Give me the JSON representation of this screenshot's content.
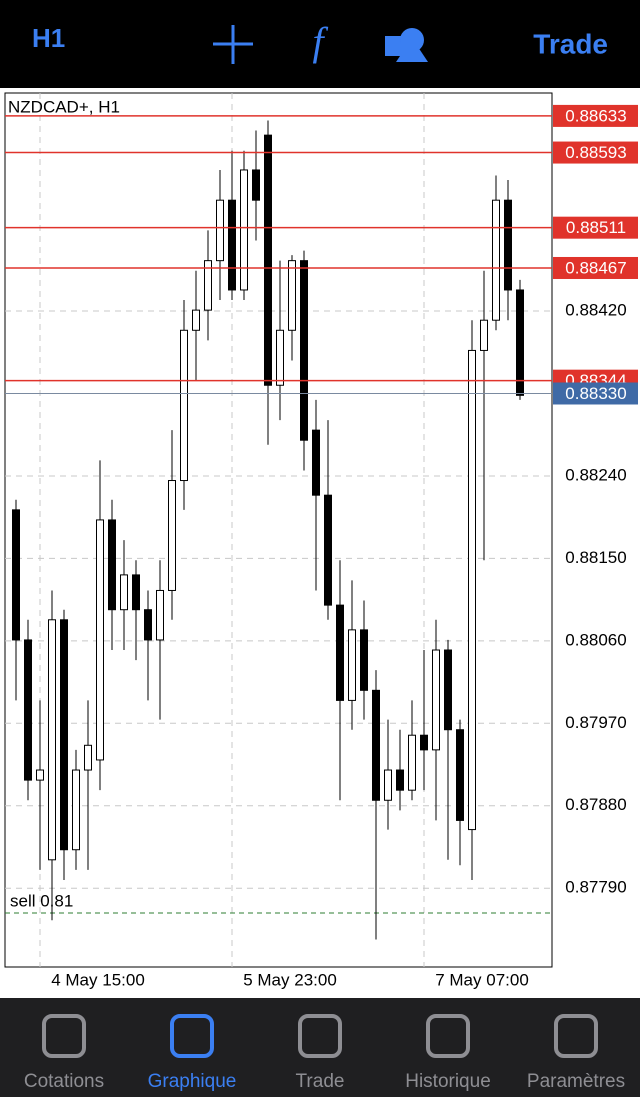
{
  "toolbar": {
    "timeframe": "H1",
    "trade": "Trade"
  },
  "chart_data": {
    "type": "candlestick",
    "title": "NZDCAD+, H1",
    "categories": [
      null,
      null,
      "4 May 15:00",
      null,
      null,
      null,
      null,
      null,
      null,
      null,
      null,
      null,
      null,
      null,
      null,
      null,
      null,
      null,
      "5 May 23:00",
      null,
      null,
      null,
      null,
      null,
      null,
      null,
      null,
      null,
      null,
      null,
      null,
      null,
      null,
      null,
      "7 May 07:00",
      null,
      null,
      null,
      null,
      null,
      null,
      null,
      null
    ],
    "open": [
      0.88203,
      0.88061,
      0.87908,
      0.87821,
      0.88083,
      0.87832,
      0.87919,
      0.8793,
      0.88192,
      0.88094,
      0.88132,
      0.88094,
      0.88061,
      0.88115,
      0.88235,
      0.88399,
      0.88421,
      0.88475,
      0.88541,
      0.88443,
      0.88574,
      0.88612,
      0.88339,
      0.88399,
      0.88475,
      0.8829,
      0.88219,
      0.88099,
      0.87995,
      0.88072,
      0.88006,
      0.87886,
      0.87919,
      0.87897,
      0.87957,
      0.87941,
      0.8805,
      0.87963,
      0.87854,
      0.88377,
      0.8841,
      0.88541,
      0.88443
    ],
    "high": [
      0.88214,
      0.88083,
      0.87995,
      0.88115,
      0.88094,
      0.87941,
      0.87995,
      0.88257,
      0.88214,
      0.8817,
      0.88148,
      0.88115,
      0.88148,
      0.8829,
      0.88432,
      0.88464,
      0.88508,
      0.88574,
      0.88595,
      0.88595,
      0.88617,
      0.88628,
      0.88475,
      0.88481,
      0.88486,
      0.88323,
      0.88301,
      0.88148,
      0.88126,
      0.88104,
      0.88028,
      0.87974,
      0.87963,
      0.87995,
      0.8805,
      0.88083,
      0.88061,
      0.87974,
      0.8841,
      0.88464,
      0.88568,
      0.88563,
      0.88454
    ],
    "low": [
      0.87995,
      0.87886,
      0.8781,
      0.87755,
      0.87799,
      0.8781,
      0.8781,
      0.87897,
      0.8805,
      0.8805,
      0.88039,
      0.87995,
      0.87974,
      0.88083,
      0.88203,
      0.88344,
      0.88388,
      0.88432,
      0.88432,
      0.88432,
      0.88497,
      0.88274,
      0.88301,
      0.88366,
      0.88246,
      0.88115,
      0.88083,
      0.87886,
      0.87963,
      0.87974,
      0.87734,
      0.87854,
      0.87875,
      0.87886,
      0.87897,
      0.87864,
      0.87821,
      0.87815,
      0.87799,
      0.88148,
      0.88399,
      0.8841,
      0.88323
    ],
    "close": [
      0.88061,
      0.87908,
      0.87919,
      0.88083,
      0.87832,
      0.87919,
      0.87946,
      0.88192,
      0.88094,
      0.88132,
      0.88094,
      0.88061,
      0.88115,
      0.88235,
      0.88399,
      0.88421,
      0.88475,
      0.88541,
      0.88443,
      0.88574,
      0.88541,
      0.88339,
      0.88399,
      0.88475,
      0.88279,
      0.88219,
      0.88099,
      0.87995,
      0.88072,
      0.88006,
      0.87886,
      0.87919,
      0.87897,
      0.87957,
      0.87941,
      0.8805,
      0.87963,
      0.87864,
      0.88377,
      0.8841,
      0.88541,
      0.88443,
      0.88328
    ],
    "ylim": [
      0.87704,
      0.88658
    ],
    "yticks": [
      {
        "value": 0.8842,
        "label": "0.88420"
      },
      {
        "value": 0.8824,
        "label": "0.88240"
      },
      {
        "value": 0.8815,
        "label": "0.88150"
      },
      {
        "value": 0.8806,
        "label": "0.88060"
      },
      {
        "value": 0.8797,
        "label": "0.87970"
      },
      {
        "value": 0.8788,
        "label": "0.87880"
      },
      {
        "value": 0.8779,
        "label": "0.87790"
      }
    ],
    "levels": [
      {
        "value": 0.88633,
        "label": "0.88633"
      },
      {
        "value": 0.88593,
        "label": "0.88593"
      },
      {
        "value": 0.88511,
        "label": "0.88511"
      },
      {
        "value": 0.88467,
        "label": "0.88467"
      },
      {
        "value": 0.88344,
        "label": "0.88344"
      }
    ],
    "bid": {
      "value": 0.8833,
      "label": "0.88330"
    },
    "order": {
      "value": 0.87763,
      "label": "sell 0.81"
    },
    "grid": true,
    "level_color": "#e0332b",
    "bid_color": "#3f6aa6"
  },
  "tabs": [
    "Cotations",
    "Graphique",
    "Trade",
    "Historique",
    "Paramètres"
  ],
  "active_tab": 1
}
